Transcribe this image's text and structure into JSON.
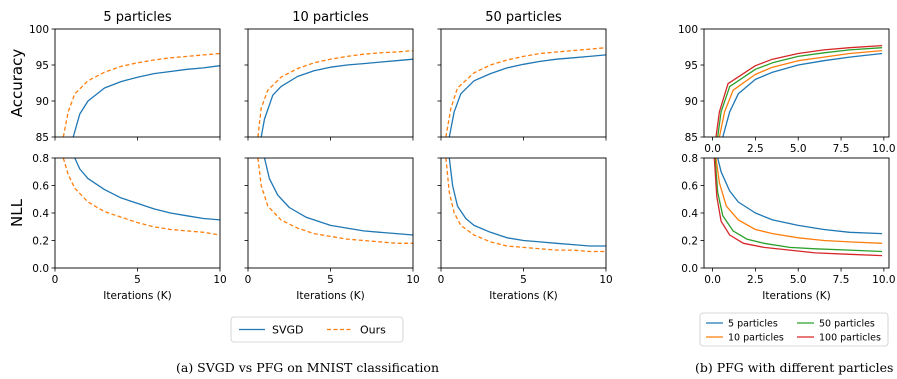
{
  "captions": {
    "left": "(a) SVGD vs PFG on MNIST classification",
    "right": "(b) PFG with different particles"
  },
  "legend_a": {
    "items": [
      {
        "label": "SVGD",
        "color": "#1f77b4",
        "dash": false
      },
      {
        "label": "Ours",
        "color": "#ff7f0e",
        "dash": true
      }
    ]
  },
  "legend_b": {
    "items": [
      {
        "label": "5 particles",
        "color": "#1f77b4"
      },
      {
        "label": "50 particles",
        "color": "#2ca02c"
      },
      {
        "label": "10 particles",
        "color": "#ff7f0e"
      },
      {
        "label": "100 particles",
        "color": "#d62728"
      }
    ]
  },
  "chart_data": [
    {
      "type": "line",
      "title": "5 particles",
      "xlabel": "",
      "ylabel": "Accuracy",
      "xlim": [
        0,
        10
      ],
      "ylim": [
        85,
        100
      ],
      "xticks": [
        0,
        5,
        10
      ],
      "yticks": [
        85,
        90,
        95,
        100
      ],
      "xtick_labels": [],
      "ytick_labels": [
        "85",
        "90",
        "95",
        "100"
      ],
      "series": [
        {
          "name": "SVGD",
          "color": "#1f77b4",
          "dash": false,
          "x": [
            1.1,
            1.5,
            2,
            3,
            4,
            5,
            6,
            7,
            8,
            9,
            10
          ],
          "y": [
            85,
            88.2,
            90.0,
            91.8,
            92.7,
            93.3,
            93.8,
            94.1,
            94.4,
            94.6,
            94.9
          ]
        },
        {
          "name": "Ours",
          "color": "#ff7f0e",
          "dash": true,
          "x": [
            0.5,
            0.8,
            1.2,
            2,
            3,
            4,
            5,
            6,
            7,
            8,
            9,
            10
          ],
          "y": [
            85,
            88.5,
            91.0,
            92.8,
            94.0,
            94.8,
            95.3,
            95.7,
            96.0,
            96.2,
            96.4,
            96.6
          ]
        }
      ]
    },
    {
      "type": "line",
      "title": "10 particles",
      "xlabel": "",
      "ylabel": "",
      "xlim": [
        0,
        10
      ],
      "ylim": [
        85,
        100
      ],
      "xticks": [
        0,
        5,
        10
      ],
      "yticks": [
        85,
        90,
        95,
        100
      ],
      "xtick_labels": [],
      "ytick_labels": [],
      "series": [
        {
          "name": "SVGD",
          "color": "#1f77b4",
          "dash": false,
          "x": [
            0.8,
            1.0,
            1.5,
            2,
            3,
            4,
            5,
            6,
            7,
            8,
            9,
            10
          ],
          "y": [
            85,
            87.5,
            90.8,
            92.0,
            93.4,
            94.2,
            94.7,
            95.0,
            95.2,
            95.4,
            95.6,
            95.8
          ]
        },
        {
          "name": "Ours",
          "color": "#ff7f0e",
          "dash": true,
          "x": [
            0.6,
            0.8,
            1.2,
            2,
            3,
            4,
            5,
            6,
            7,
            8,
            9,
            10
          ],
          "y": [
            85,
            89.0,
            91.5,
            93.3,
            94.5,
            95.3,
            95.8,
            96.2,
            96.5,
            96.7,
            96.8,
            97.0
          ]
        }
      ]
    },
    {
      "type": "line",
      "title": "50 particles",
      "xlabel": "",
      "ylabel": "",
      "xlim": [
        0,
        10
      ],
      "ylim": [
        85,
        100
      ],
      "xticks": [
        0,
        5,
        10
      ],
      "yticks": [
        85,
        90,
        95,
        100
      ],
      "xtick_labels": [],
      "ytick_labels": [],
      "series": [
        {
          "name": "SVGD",
          "color": "#1f77b4",
          "dash": false,
          "x": [
            0.5,
            0.8,
            1.2,
            2,
            3,
            4,
            5,
            6,
            7,
            8,
            9,
            10
          ],
          "y": [
            85,
            88.5,
            91.0,
            92.8,
            93.8,
            94.6,
            95.1,
            95.5,
            95.8,
            96.0,
            96.2,
            96.4
          ]
        },
        {
          "name": "Ours",
          "color": "#ff7f0e",
          "dash": true,
          "x": [
            0.3,
            0.6,
            1.0,
            2,
            3,
            4,
            5,
            6,
            7,
            8,
            9,
            10
          ],
          "y": [
            85,
            89.0,
            91.8,
            93.9,
            95.0,
            95.7,
            96.2,
            96.6,
            96.8,
            97.0,
            97.2,
            97.4
          ]
        }
      ]
    },
    {
      "type": "line",
      "title": "",
      "xlabel": "",
      "ylabel": "",
      "xlim": [
        -0.5,
        10.3
      ],
      "ylim": [
        85,
        100
      ],
      "xticks": [
        0,
        2.5,
        5,
        7.5,
        10
      ],
      "yticks": [
        85,
        90,
        95,
        100
      ],
      "xtick_labels": [
        "0.0",
        "2.5",
        "5.0",
        "7.5",
        "10.0"
      ],
      "ytick_labels": [
        "85",
        "90",
        "95",
        "100"
      ],
      "series": [
        {
          "name": "5 particles",
          "color": "#1f77b4",
          "dash": false,
          "x": [
            0.6,
            1.0,
            1.5,
            2.5,
            3.5,
            5,
            6.5,
            8,
            9.9
          ],
          "y": [
            85,
            88.5,
            91.0,
            93.0,
            94.0,
            95.0,
            95.6,
            96.1,
            96.6
          ]
        },
        {
          "name": "10 particles",
          "color": "#ff7f0e",
          "dash": false,
          "x": [
            0.4,
            0.7,
            1.2,
            2.5,
            3.5,
            5,
            6.5,
            8,
            9.9
          ],
          "y": [
            85,
            88.5,
            91.5,
            93.7,
            94.7,
            95.6,
            96.1,
            96.6,
            97.0
          ]
        },
        {
          "name": "50 particles",
          "color": "#2ca02c",
          "dash": false,
          "x": [
            0.3,
            0.5,
            1.0,
            2.5,
            3.5,
            5,
            6.5,
            8,
            9.9
          ],
          "y": [
            85,
            88.5,
            92.0,
            94.4,
            95.3,
            96.2,
            96.7,
            97.1,
            97.4
          ]
        },
        {
          "name": "100 particles",
          "color": "#d62728",
          "dash": false,
          "x": [
            0.2,
            0.4,
            0.9,
            2.5,
            3.5,
            5,
            6.5,
            8,
            9.9
          ],
          "y": [
            85,
            88.5,
            92.4,
            94.9,
            95.8,
            96.6,
            97.1,
            97.4,
            97.7
          ]
        }
      ]
    },
    {
      "type": "line",
      "title": "",
      "xlabel": "Iterations (K)",
      "ylabel": "NLL",
      "xlim": [
        0,
        10
      ],
      "ylim": [
        0,
        0.8
      ],
      "xticks": [
        0,
        5,
        10
      ],
      "yticks": [
        0.0,
        0.2,
        0.4,
        0.6,
        0.8
      ],
      "xtick_labels": [
        "0",
        "5",
        "10"
      ],
      "ytick_labels": [
        "0.0",
        "0.2",
        "0.4",
        "0.6",
        "0.8"
      ],
      "series": [
        {
          "name": "SVGD",
          "color": "#1f77b4",
          "dash": false,
          "x": [
            1.2,
            1.5,
            2,
            3,
            4,
            5,
            6,
            7,
            8,
            9,
            10
          ],
          "y": [
            0.8,
            0.72,
            0.65,
            0.57,
            0.51,
            0.47,
            0.43,
            0.4,
            0.38,
            0.36,
            0.35
          ]
        },
        {
          "name": "Ours",
          "color": "#ff7f0e",
          "dash": true,
          "x": [
            0.5,
            0.8,
            1.2,
            2,
            3,
            4,
            5,
            6,
            7,
            8,
            9,
            10
          ],
          "y": [
            0.8,
            0.68,
            0.58,
            0.48,
            0.41,
            0.37,
            0.33,
            0.3,
            0.28,
            0.27,
            0.26,
            0.24
          ]
        }
      ]
    },
    {
      "type": "line",
      "title": "",
      "xlabel": "Iterations (K)",
      "ylabel": "",
      "xlim": [
        0,
        10
      ],
      "ylim": [
        0,
        0.8
      ],
      "xticks": [
        0,
        5,
        10
      ],
      "yticks": [
        0.0,
        0.2,
        0.4,
        0.6,
        0.8
      ],
      "xtick_labels": [
        "0",
        "5",
        "10"
      ],
      "ytick_labels": [],
      "series": [
        {
          "name": "SVGD",
          "color": "#1f77b4",
          "dash": false,
          "x": [
            1.0,
            1.3,
            1.8,
            2.5,
            3.5,
            5,
            6,
            7,
            8,
            9,
            10
          ],
          "y": [
            0.8,
            0.65,
            0.53,
            0.44,
            0.37,
            0.31,
            0.29,
            0.27,
            0.26,
            0.25,
            0.24
          ]
        },
        {
          "name": "Ours",
          "color": "#ff7f0e",
          "dash": true,
          "x": [
            0.6,
            0.8,
            1.2,
            2,
            3,
            4,
            5,
            6,
            7,
            8,
            9,
            10
          ],
          "y": [
            0.8,
            0.6,
            0.45,
            0.35,
            0.29,
            0.25,
            0.23,
            0.21,
            0.2,
            0.19,
            0.18,
            0.18
          ]
        }
      ]
    },
    {
      "type": "line",
      "title": "",
      "xlabel": "Iterations (K)",
      "ylabel": "",
      "xlim": [
        0,
        10
      ],
      "ylim": [
        0,
        0.8
      ],
      "xticks": [
        0,
        5,
        10
      ],
      "yticks": [
        0.0,
        0.2,
        0.4,
        0.6,
        0.8
      ],
      "xtick_labels": [
        "0",
        "5",
        "10"
      ],
      "ytick_labels": [],
      "series": [
        {
          "name": "SVGD",
          "color": "#1f77b4",
          "dash": false,
          "x": [
            0.5,
            0.7,
            1.0,
            1.5,
            2,
            3,
            4,
            5,
            6,
            7,
            8,
            9,
            10
          ],
          "y": [
            0.8,
            0.6,
            0.45,
            0.36,
            0.31,
            0.26,
            0.22,
            0.2,
            0.19,
            0.18,
            0.17,
            0.16,
            0.16
          ]
        },
        {
          "name": "Ours",
          "color": "#ff7f0e",
          "dash": true,
          "x": [
            0.3,
            0.5,
            0.8,
            1.2,
            2,
            3,
            4,
            5,
            6,
            7,
            8,
            9,
            10
          ],
          "y": [
            0.8,
            0.55,
            0.4,
            0.31,
            0.24,
            0.19,
            0.16,
            0.15,
            0.14,
            0.13,
            0.13,
            0.12,
            0.12
          ]
        }
      ]
    },
    {
      "type": "line",
      "title": "",
      "xlabel": "Iterations (K)",
      "ylabel": "",
      "xlim": [
        -0.5,
        10.3
      ],
      "ylim": [
        0,
        0.8
      ],
      "xticks": [
        0,
        2.5,
        5,
        7.5,
        10
      ],
      "yticks": [
        0.0,
        0.2,
        0.4,
        0.6,
        0.8
      ],
      "xtick_labels": [
        "0.0",
        "2.5",
        "5.0",
        "7.5",
        "10.0"
      ],
      "ytick_labels": [
        "0.0",
        "0.2",
        "0.4",
        "0.6",
        "0.8"
      ],
      "series": [
        {
          "name": "5 particles",
          "color": "#1f77b4",
          "dash": false,
          "x": [
            0.3,
            0.5,
            1.0,
            1.5,
            2.5,
            3.5,
            5,
            6.5,
            8,
            9.9
          ],
          "y": [
            0.8,
            0.7,
            0.56,
            0.48,
            0.4,
            0.35,
            0.31,
            0.28,
            0.26,
            0.25
          ]
        },
        {
          "name": "10 particles",
          "color": "#ff7f0e",
          "dash": false,
          "x": [
            0.2,
            0.4,
            0.8,
            1.5,
            2.5,
            3.5,
            5,
            6.5,
            8,
            9.9
          ],
          "y": [
            0.8,
            0.62,
            0.45,
            0.35,
            0.28,
            0.25,
            0.22,
            0.2,
            0.19,
            0.18
          ]
        },
        {
          "name": "50 particles",
          "color": "#2ca02c",
          "dash": false,
          "x": [
            0.15,
            0.3,
            0.6,
            1.2,
            2,
            3,
            4.5,
            6,
            8,
            9.9
          ],
          "y": [
            0.8,
            0.55,
            0.38,
            0.27,
            0.21,
            0.18,
            0.15,
            0.14,
            0.13,
            0.12
          ]
        },
        {
          "name": "100 particles",
          "color": "#d62728",
          "dash": false,
          "x": [
            0.1,
            0.25,
            0.5,
            1.0,
            1.8,
            3,
            4.5,
            6,
            8,
            9.9
          ],
          "y": [
            0.8,
            0.52,
            0.34,
            0.24,
            0.18,
            0.15,
            0.13,
            0.11,
            0.1,
            0.09
          ]
        }
      ]
    }
  ]
}
